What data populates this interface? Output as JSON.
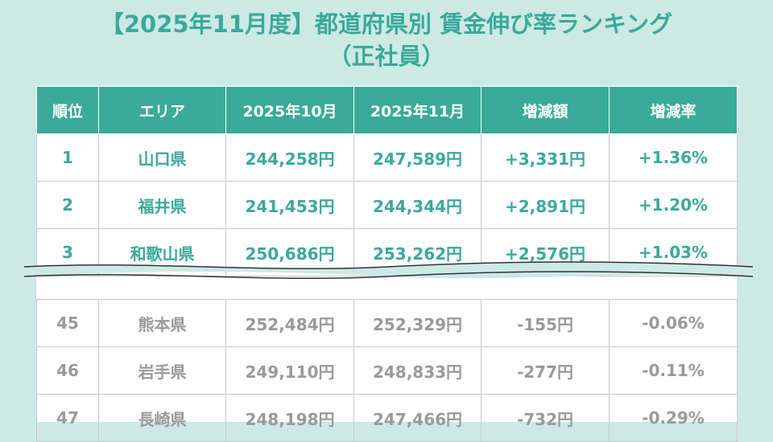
{
  "title": {
    "line1": "【2025年11月度】都道府県別 賃金伸び率ランキング",
    "line2": "（正社員）"
  },
  "columns": [
    "順位",
    "エリア",
    "2025年10月",
    "2025年11月",
    "増減額",
    "増減率"
  ],
  "top_rows": [
    {
      "rank": "1",
      "area": "山口県",
      "oct": "244,258円",
      "nov": "247,589円",
      "diff": "+3,331円",
      "rate": "+1.36%"
    },
    {
      "rank": "2",
      "area": "福井県",
      "oct": "241,453円",
      "nov": "244,344円",
      "diff": "+2,891円",
      "rate": "+1.20%"
    },
    {
      "rank": "3",
      "area": "和歌山県",
      "oct": "250,686円",
      "nov": "253,262円",
      "diff": "+2,576円",
      "rate": "+1.03%"
    }
  ],
  "bottom_rows": [
    {
      "rank": "45",
      "area": "熊本県",
      "oct": "252,484円",
      "nov": "252,329円",
      "diff": "-155円",
      "rate": "-0.06%"
    },
    {
      "rank": "46",
      "area": "岩手県",
      "oct": "249,110円",
      "nov": "248,833円",
      "diff": "-277円",
      "rate": "-0.11%"
    },
    {
      "rank": "47",
      "area": "長崎県",
      "oct": "248,198円",
      "nov": "247,466円",
      "diff": "-732円",
      "rate": "-0.29%"
    }
  ],
  "colors": {
    "accent": "#3aaa99",
    "muted": "#9a9a9a",
    "background": "#cde9e4"
  }
}
